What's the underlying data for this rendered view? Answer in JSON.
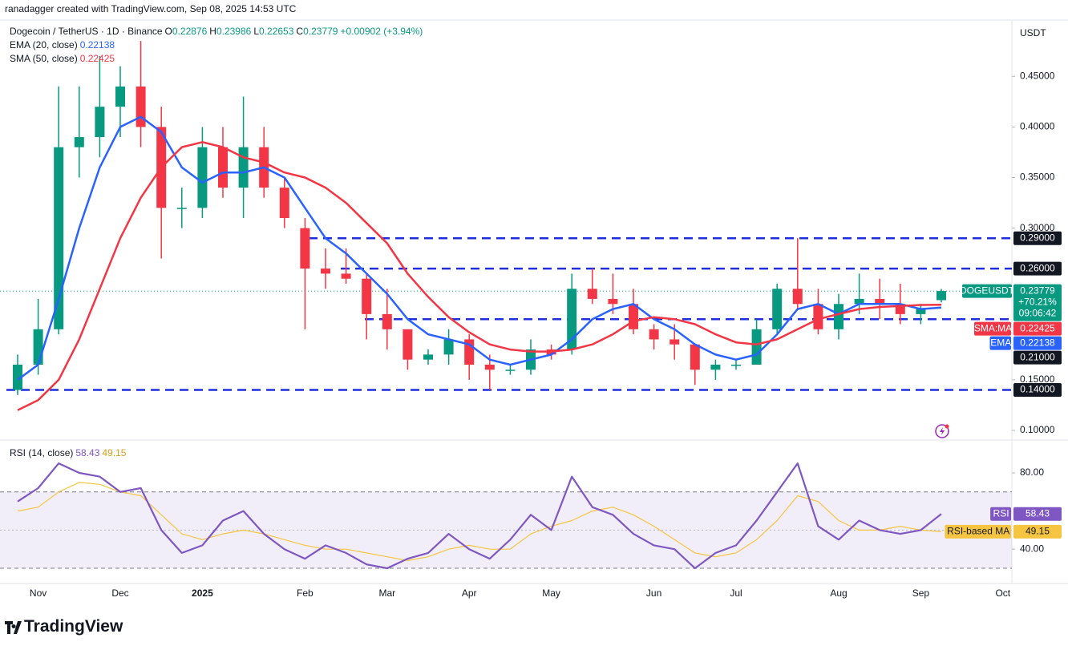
{
  "chart_data": {
    "type": "candlestick",
    "credit": "ranadagger created with TradingView.com, Sep 08, 2025 14:53 UTC",
    "title": "Dogecoin / TetherUS · 1D · Binance",
    "ohlc_labels": [
      "O",
      "H",
      "L",
      "C"
    ],
    "change": "+0.00902 (+3.94%)",
    "currency": "USDT",
    "brand": "TradingView",
    "categories": [
      null,
      "Nov",
      null,
      null,
      null,
      "Dec",
      null,
      null,
      null,
      "2025",
      null,
      null,
      null,
      null,
      "Feb",
      null,
      null,
      null,
      "Mar",
      null,
      null,
      null,
      "Apr",
      null,
      null,
      null,
      "May",
      null,
      null,
      null,
      null,
      "Jun",
      null,
      null,
      null,
      "Jul",
      null,
      null,
      null,
      null,
      "Aug",
      null,
      null,
      null,
      "Sep",
      null,
      null,
      null,
      "Oct"
    ],
    "open": [
      0.14,
      0.165,
      0.2,
      0.38,
      0.39,
      0.42,
      0.44,
      0.4,
      0.32,
      0.32,
      0.38,
      0.34,
      0.38,
      0.34,
      0.3,
      0.26,
      0.255,
      0.25,
      0.215,
      0.2,
      0.17,
      0.175,
      0.19,
      0.165,
      0.16,
      0.16,
      0.18,
      0.18,
      0.24,
      0.23,
      0.225,
      0.2,
      0.19,
      0.185,
      0.16,
      0.165,
      0.165,
      0.2,
      0.24,
      0.225,
      0.2,
      0.225,
      0.23,
      0.225,
      0.215,
      0.22876,
      null,
      null,
      null
    ],
    "high": [
      0.175,
      0.23,
      0.44,
      0.44,
      0.47,
      0.46,
      0.485,
      0.42,
      0.34,
      0.4,
      0.4,
      0.43,
      0.4,
      0.35,
      0.31,
      0.28,
      0.28,
      0.255,
      0.24,
      0.2,
      0.18,
      0.2,
      0.195,
      0.175,
      0.165,
      0.19,
      0.185,
      0.255,
      0.26,
      0.255,
      0.24,
      0.205,
      0.205,
      0.185,
      0.17,
      0.17,
      0.21,
      0.245,
      0.29,
      0.24,
      0.235,
      0.255,
      0.25,
      0.245,
      0.225,
      0.23986,
      null,
      null,
      null
    ],
    "low": [
      0.135,
      0.155,
      0.195,
      0.35,
      0.37,
      0.39,
      0.38,
      0.27,
      0.3,
      0.31,
      0.33,
      0.31,
      0.33,
      0.3,
      0.2,
      0.24,
      0.245,
      0.19,
      0.18,
      0.16,
      0.165,
      0.165,
      0.15,
      0.14,
      0.155,
      0.155,
      0.17,
      0.175,
      0.225,
      0.215,
      0.195,
      0.18,
      0.17,
      0.145,
      0.15,
      0.16,
      0.165,
      0.195,
      0.22,
      0.195,
      0.19,
      0.215,
      0.21,
      0.205,
      0.205,
      0.22653,
      null,
      null,
      null
    ],
    "close": [
      0.165,
      0.2,
      0.38,
      0.39,
      0.42,
      0.44,
      0.4,
      0.32,
      0.32,
      0.38,
      0.34,
      0.38,
      0.34,
      0.31,
      0.26,
      0.255,
      0.25,
      0.215,
      0.2,
      0.17,
      0.175,
      0.19,
      0.165,
      0.16,
      0.16,
      0.18,
      0.175,
      0.24,
      0.23,
      0.225,
      0.2,
      0.19,
      0.185,
      0.16,
      0.165,
      0.165,
      0.2,
      0.24,
      0.225,
      0.2,
      0.225,
      0.23,
      0.225,
      0.215,
      0.22,
      0.23779,
      null,
      null,
      null
    ],
    "up_color": "#089981",
    "down_color": "#f23645",
    "ylim": [
      0.0913,
      0.5057
    ],
    "yticks": [
      {
        "value": 0.1,
        "label": "0.10000"
      },
      {
        "value": 0.15,
        "label": "0.15000"
      },
      {
        "value": 0.3,
        "label": "0.30000"
      },
      {
        "value": 0.35,
        "label": "0.35000"
      },
      {
        "value": 0.4,
        "label": "0.40000"
      },
      {
        "value": 0.45,
        "label": "0.45000"
      }
    ],
    "levels": [
      {
        "value": 0.29,
        "label": "0.29000"
      },
      {
        "value": 0.26,
        "label": "0.26000"
      },
      {
        "value": 0.21,
        "label": "0.21000"
      },
      {
        "value": 0.14,
        "label": "0.14000"
      }
    ],
    "level_color": "#1f2fe0",
    "price_tag": {
      "symbol": "DOGEUSDT",
      "change": "+70.21%",
      "countdown": "09:06:42"
    },
    "series": [
      {
        "name": "EMA (20, close)",
        "tag": "EMA",
        "color": "#2962ff",
        "values": [
          0.15,
          0.165,
          0.23,
          0.3,
          0.36,
          0.4,
          0.41,
          0.395,
          0.36,
          0.345,
          0.355,
          0.355,
          0.36,
          0.35,
          0.32,
          0.29,
          0.275,
          0.255,
          0.235,
          0.21,
          0.195,
          0.19,
          0.185,
          0.17,
          0.165,
          0.17,
          0.175,
          0.19,
          0.21,
          0.22,
          0.225,
          0.21,
          0.2,
          0.185,
          0.175,
          0.17,
          0.175,
          0.195,
          0.22,
          0.225,
          0.215,
          0.225,
          0.225,
          0.225,
          0.22,
          0.22138,
          null,
          null,
          null
        ]
      },
      {
        "name": "SMA (50, close)",
        "tag": "SMA:MA",
        "color": "#f23645",
        "values": [
          0.12,
          0.13,
          0.15,
          0.19,
          0.24,
          0.29,
          0.33,
          0.36,
          0.38,
          0.385,
          0.38,
          0.37,
          0.365,
          0.355,
          0.35,
          0.34,
          0.325,
          0.305,
          0.285,
          0.255,
          0.232,
          0.212,
          0.197,
          0.185,
          0.18,
          0.178,
          0.178,
          0.18,
          0.185,
          0.195,
          0.208,
          0.212,
          0.21,
          0.205,
          0.195,
          0.187,
          0.185,
          0.19,
          0.2,
          0.21,
          0.215,
          0.22,
          0.222,
          0.223,
          0.224,
          0.22425,
          null,
          null,
          null
        ]
      }
    ],
    "rsi": {
      "title": "RSI (14, close)",
      "ylim": [
        22,
        96.8
      ],
      "yticks": [
        {
          "value": 80,
          "label": "80.00"
        },
        {
          "value": 40,
          "label": "40.00"
        }
      ],
      "band": [
        30,
        70
      ],
      "midline": 50,
      "series": [
        {
          "name": "RSI",
          "color": "#7e57c2",
          "values": [
            65,
            72,
            85,
            80,
            78,
            70,
            72,
            50,
            38,
            42,
            55,
            60,
            48,
            40,
            35,
            42,
            38,
            32,
            30,
            35,
            38,
            48,
            40,
            35,
            45,
            58,
            50,
            78,
            62,
            58,
            48,
            42,
            40,
            30,
            38,
            42,
            55,
            70,
            85,
            52,
            45,
            55,
            50,
            48,
            50,
            58.43,
            null,
            null,
            null
          ]
        },
        {
          "name": "RSI-based MA",
          "color": "#f5c542",
          "values": [
            60,
            62,
            70,
            75,
            74,
            70,
            68,
            58,
            48,
            45,
            48,
            50,
            48,
            45,
            42,
            40,
            40,
            38,
            36,
            34,
            36,
            40,
            42,
            40,
            40,
            48,
            52,
            55,
            60,
            62,
            58,
            52,
            45,
            38,
            36,
            38,
            45,
            55,
            68,
            65,
            55,
            50,
            50,
            52,
            50,
            49.15,
            null,
            null,
            null
          ]
        }
      ]
    }
  }
}
